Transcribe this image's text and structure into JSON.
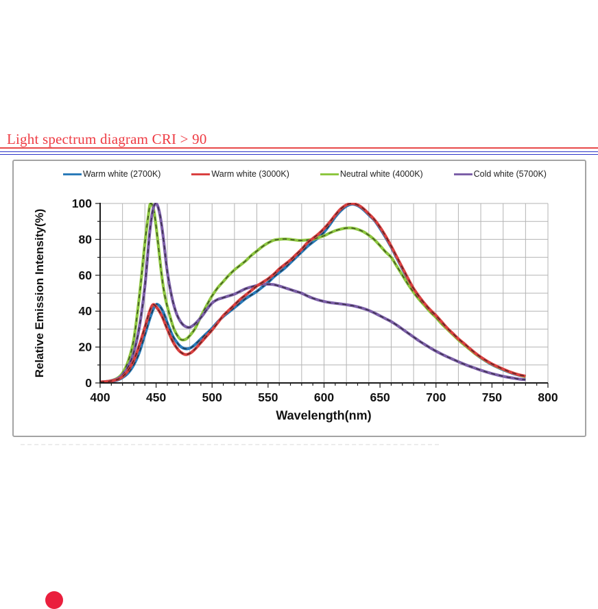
{
  "page": {
    "title": "Light spectrum diagram CRI > 90"
  },
  "colors": {
    "title_red": "#ee3b43",
    "rule_red": "#e84848",
    "rule_blue": "#2d35c8",
    "grid": "#b3b3b3",
    "axis": "#1a1a1a",
    "panel_border": "#a3a3a3"
  },
  "chart_data": {
    "type": "line",
    "title": "",
    "xlabel": "Wavelength(nm)",
    "ylabel": "Relative Emission Intensity(%)",
    "xlim": [
      400,
      800
    ],
    "ylim": [
      0,
      100
    ],
    "x_major_ticks": [
      400,
      450,
      500,
      550,
      600,
      650,
      700,
      750,
      800
    ],
    "y_major_ticks": [
      0,
      20,
      40,
      60,
      80,
      100
    ],
    "grid": {
      "on": true,
      "x_step": 20,
      "y_step": 10,
      "color": "#b3b3b3"
    },
    "legend_position": "top",
    "curve_overlay": "black-dashed",
    "series": [
      {
        "name": "Warm white (2700K)",
        "color": "#2b7bb9",
        "points": [
          [
            400,
            0.5
          ],
          [
            408,
            0.8
          ],
          [
            415,
            1.5
          ],
          [
            420,
            3
          ],
          [
            425,
            5.5
          ],
          [
            430,
            10
          ],
          [
            435,
            17
          ],
          [
            440,
            27
          ],
          [
            445,
            37
          ],
          [
            449,
            43
          ],
          [
            452,
            43.5
          ],
          [
            456,
            40
          ],
          [
            460,
            33.5
          ],
          [
            465,
            26
          ],
          [
            470,
            21.5
          ],
          [
            473,
            19.8
          ],
          [
            477,
            19
          ],
          [
            481,
            19.6
          ],
          [
            485,
            21.5
          ],
          [
            490,
            24.5
          ],
          [
            495,
            27.5
          ],
          [
            500,
            30.5
          ],
          [
            505,
            34
          ],
          [
            510,
            37
          ],
          [
            515,
            39.5
          ],
          [
            520,
            42
          ],
          [
            525,
            44.5
          ],
          [
            530,
            47
          ],
          [
            535,
            49
          ],
          [
            540,
            51
          ],
          [
            545,
            53.5
          ],
          [
            550,
            56
          ],
          [
            555,
            59
          ],
          [
            560,
            61.5
          ],
          [
            565,
            64
          ],
          [
            570,
            67
          ],
          [
            575,
            70
          ],
          [
            580,
            73
          ],
          [
            585,
            76
          ],
          [
            590,
            78.5
          ],
          [
            595,
            81
          ],
          [
            600,
            84
          ],
          [
            605,
            88
          ],
          [
            610,
            92.5
          ],
          [
            615,
            96
          ],
          [
            620,
            98.5
          ],
          [
            625,
            99.6
          ],
          [
            630,
            98.8
          ],
          [
            635,
            96.6
          ],
          [
            640,
            93.6
          ],
          [
            645,
            90.6
          ],
          [
            650,
            86.1
          ],
          [
            655,
            81.1
          ],
          [
            660,
            75.6
          ],
          [
            665,
            69.6
          ],
          [
            670,
            63.6
          ],
          [
            675,
            57.6
          ],
          [
            680,
            52.1
          ],
          [
            685,
            47.6
          ],
          [
            690,
            43.6
          ],
          [
            695,
            40.1
          ],
          [
            700,
            37.1
          ],
          [
            705,
            33.6
          ],
          [
            710,
            30.1
          ],
          [
            715,
            27.1
          ],
          [
            720,
            24.1
          ],
          [
            725,
            21.6
          ],
          [
            730,
            18.9
          ],
          [
            735,
            16.3
          ],
          [
            740,
            14
          ],
          [
            745,
            12
          ],
          [
            750,
            10.2
          ],
          [
            755,
            8.7
          ],
          [
            760,
            7.3
          ],
          [
            765,
            6.1
          ],
          [
            770,
            5
          ],
          [
            775,
            4.2
          ],
          [
            780,
            3.5
          ]
        ]
      },
      {
        "name": "Warm white (3000K)",
        "color": "#d94040",
        "points": [
          [
            400,
            0.5
          ],
          [
            408,
            0.9
          ],
          [
            415,
            1.8
          ],
          [
            420,
            3.5
          ],
          [
            425,
            7
          ],
          [
            430,
            12.5
          ],
          [
            435,
            21
          ],
          [
            440,
            31
          ],
          [
            444,
            39.5
          ],
          [
            447,
            43.5
          ],
          [
            450,
            42.5
          ],
          [
            455,
            37.5
          ],
          [
            460,
            30
          ],
          [
            465,
            23
          ],
          [
            470,
            18.3
          ],
          [
            474,
            16.3
          ],
          [
            477,
            15.8
          ],
          [
            481,
            16.8
          ],
          [
            485,
            19
          ],
          [
            490,
            22.5
          ],
          [
            495,
            26
          ],
          [
            500,
            29.5
          ],
          [
            505,
            33.5
          ],
          [
            510,
            37.5
          ],
          [
            515,
            40.5
          ],
          [
            520,
            43.5
          ],
          [
            525,
            46.5
          ],
          [
            530,
            49
          ],
          [
            535,
            51.5
          ],
          [
            540,
            54
          ],
          [
            545,
            56
          ],
          [
            550,
            58
          ],
          [
            555,
            60.5
          ],
          [
            560,
            63.5
          ],
          [
            565,
            66
          ],
          [
            570,
            68.5
          ],
          [
            575,
            71.5
          ],
          [
            580,
            74.5
          ],
          [
            585,
            78
          ],
          [
            590,
            80.5
          ],
          [
            595,
            83
          ],
          [
            600,
            86
          ],
          [
            605,
            89.5
          ],
          [
            610,
            93.5
          ],
          [
            615,
            97
          ],
          [
            620,
            99.2
          ],
          [
            625,
            100
          ],
          [
            630,
            99.2
          ],
          [
            635,
            97.2
          ],
          [
            640,
            94.2
          ],
          [
            645,
            91
          ],
          [
            650,
            86.8
          ],
          [
            655,
            81.8
          ],
          [
            660,
            76.2
          ],
          [
            665,
            70.2
          ],
          [
            670,
            64.2
          ],
          [
            675,
            58.2
          ],
          [
            680,
            52.6
          ],
          [
            685,
            48.1
          ],
          [
            690,
            44.1
          ],
          [
            695,
            40.6
          ],
          [
            700,
            37.6
          ],
          [
            705,
            34.1
          ],
          [
            710,
            30.6
          ],
          [
            715,
            27.6
          ],
          [
            720,
            24.6
          ],
          [
            725,
            22
          ],
          [
            730,
            19.3
          ],
          [
            735,
            16.7
          ],
          [
            740,
            14.4
          ],
          [
            745,
            12.4
          ],
          [
            750,
            10.6
          ],
          [
            755,
            9.1
          ],
          [
            760,
            7.7
          ],
          [
            765,
            6.4
          ],
          [
            770,
            5.3
          ],
          [
            775,
            4.4
          ],
          [
            780,
            3.8
          ]
        ]
      },
      {
        "name": "Neutral white (4000K)",
        "color": "#8dc63f",
        "points": [
          [
            400,
            0.5
          ],
          [
            408,
            1
          ],
          [
            415,
            2.5
          ],
          [
            420,
            5.5
          ],
          [
            425,
            12
          ],
          [
            430,
            24
          ],
          [
            435,
            48
          ],
          [
            440,
            78
          ],
          [
            443,
            93
          ],
          [
            445,
            100
          ],
          [
            448,
            96
          ],
          [
            451,
            82
          ],
          [
            455,
            60
          ],
          [
            458,
            48
          ],
          [
            462,
            38
          ],
          [
            466,
            30
          ],
          [
            470,
            25.5
          ],
          [
            473,
            24
          ],
          [
            477,
            24.5
          ],
          [
            481,
            27
          ],
          [
            485,
            30.5
          ],
          [
            490,
            37
          ],
          [
            495,
            43
          ],
          [
            500,
            48.5
          ],
          [
            505,
            53
          ],
          [
            510,
            56.5
          ],
          [
            515,
            60
          ],
          [
            520,
            63
          ],
          [
            525,
            65.5
          ],
          [
            530,
            68
          ],
          [
            535,
            71
          ],
          [
            540,
            73.5
          ],
          [
            545,
            76
          ],
          [
            550,
            78
          ],
          [
            555,
            79.5
          ],
          [
            560,
            80
          ],
          [
            566,
            80.2
          ],
          [
            572,
            79.8
          ],
          [
            578,
            79.4
          ],
          [
            584,
            79.6
          ],
          [
            590,
            80
          ],
          [
            595,
            81
          ],
          [
            600,
            82
          ],
          [
            605,
            83.5
          ],
          [
            610,
            84.8
          ],
          [
            615,
            85.7
          ],
          [
            620,
            86.3
          ],
          [
            625,
            86.3
          ],
          [
            630,
            85.6
          ],
          [
            635,
            84.3
          ],
          [
            640,
            82.3
          ],
          [
            645,
            79.8
          ],
          [
            650,
            76.5
          ],
          [
            655,
            73
          ],
          [
            660,
            70
          ],
          [
            665,
            65
          ],
          [
            670,
            60
          ],
          [
            675,
            55
          ],
          [
            680,
            50.5
          ],
          [
            685,
            46.5
          ],
          [
            690,
            43
          ],
          [
            695,
            39.5
          ],
          [
            700,
            36.5
          ],
          [
            705,
            33
          ],
          [
            710,
            30
          ],
          [
            715,
            27
          ],
          [
            720,
            24
          ],
          [
            725,
            21.3
          ],
          [
            730,
            18.8
          ],
          [
            735,
            16.3
          ],
          [
            740,
            14.2
          ],
          [
            745,
            12.2
          ],
          [
            750,
            10.5
          ],
          [
            755,
            8.9
          ],
          [
            760,
            7.6
          ],
          [
            765,
            6.3
          ],
          [
            770,
            5.3
          ],
          [
            775,
            4.3
          ],
          [
            780,
            3.4
          ]
        ]
      },
      {
        "name": "Cold white (5700K)",
        "color": "#7c5fa8",
        "points": [
          [
            400,
            0.5
          ],
          [
            408,
            1
          ],
          [
            415,
            2.2
          ],
          [
            420,
            4.5
          ],
          [
            425,
            9
          ],
          [
            430,
            17
          ],
          [
            435,
            31
          ],
          [
            440,
            54
          ],
          [
            444,
            82
          ],
          [
            447,
            96
          ],
          [
            450,
            100
          ],
          [
            453,
            95
          ],
          [
            456,
            83
          ],
          [
            460,
            62
          ],
          [
            464,
            48
          ],
          [
            468,
            39
          ],
          [
            472,
            34
          ],
          [
            476,
            31.5
          ],
          [
            480,
            31
          ],
          [
            484,
            32.5
          ],
          [
            488,
            35
          ],
          [
            492,
            38
          ],
          [
            496,
            41.5
          ],
          [
            500,
            44.5
          ],
          [
            505,
            46.5
          ],
          [
            510,
            47.5
          ],
          [
            515,
            48.5
          ],
          [
            520,
            49.5
          ],
          [
            525,
            51
          ],
          [
            530,
            52.5
          ],
          [
            535,
            53.5
          ],
          [
            540,
            54.3
          ],
          [
            545,
            55
          ],
          [
            550,
            55
          ],
          [
            555,
            54.8
          ],
          [
            560,
            54
          ],
          [
            565,
            53
          ],
          [
            570,
            52
          ],
          [
            575,
            51
          ],
          [
            580,
            50
          ],
          [
            585,
            48.5
          ],
          [
            590,
            47.2
          ],
          [
            595,
            46.2
          ],
          [
            600,
            45.4
          ],
          [
            605,
            44.8
          ],
          [
            610,
            44.4
          ],
          [
            615,
            44
          ],
          [
            620,
            43.6
          ],
          [
            625,
            43.1
          ],
          [
            630,
            42.4
          ],
          [
            635,
            41.5
          ],
          [
            640,
            40.4
          ],
          [
            645,
            39
          ],
          [
            650,
            37.4
          ],
          [
            655,
            35.8
          ],
          [
            660,
            34.2
          ],
          [
            665,
            32.2
          ],
          [
            670,
            30
          ],
          [
            675,
            27.8
          ],
          [
            680,
            25.6
          ],
          [
            685,
            23.4
          ],
          [
            690,
            21.4
          ],
          [
            695,
            19.5
          ],
          [
            700,
            17.7
          ],
          [
            705,
            16.1
          ],
          [
            710,
            14.6
          ],
          [
            715,
            13.2
          ],
          [
            720,
            11.8
          ],
          [
            725,
            10.5
          ],
          [
            730,
            9.3
          ],
          [
            735,
            8.2
          ],
          [
            740,
            7.1
          ],
          [
            745,
            6.1
          ],
          [
            750,
            5.2
          ],
          [
            755,
            4.4
          ],
          [
            760,
            3.7
          ],
          [
            765,
            3.1
          ],
          [
            770,
            2.6
          ],
          [
            775,
            2.1
          ],
          [
            780,
            1.8
          ]
        ]
      }
    ]
  }
}
